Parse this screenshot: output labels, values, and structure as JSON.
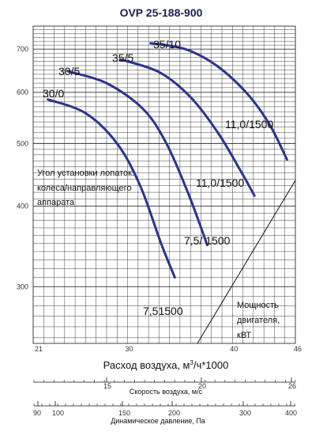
{
  "chart_data": {
    "type": "line",
    "title": "OVP 25-188-900",
    "xlabel_main": "Расход воздуха, м",
    "xlabel_sup": "3",
    "xlabel_rest": "/ч*1000",
    "xlim": [
      21,
      46
    ],
    "y_ticks": [
      300,
      400,
      500,
      600,
      700
    ],
    "x_ticks": [
      21,
      30,
      40,
      46
    ],
    "series": [
      {
        "name": "30/0",
        "points": [
          [
            22.4,
            585
          ],
          [
            26,
            557
          ],
          [
            29,
            500
          ],
          [
            31.2,
            430
          ],
          [
            33.2,
            350
          ],
          [
            34.5,
            310
          ]
        ]
      },
      {
        "name": "30/5",
        "points": [
          [
            24.3,
            647
          ],
          [
            28,
            620
          ],
          [
            31.5,
            565
          ],
          [
            33.7,
            500
          ],
          [
            35.8,
            418
          ],
          [
            37.6,
            348
          ]
        ]
      },
      {
        "name": "35/5",
        "points": [
          [
            29.3,
            675
          ],
          [
            33,
            645
          ],
          [
            36,
            590
          ],
          [
            38.6,
            520
          ],
          [
            40.8,
            453
          ],
          [
            42.1,
            415
          ]
        ]
      },
      {
        "name": "35/10",
        "points": [
          [
            32.2,
            715
          ],
          [
            35.5,
            700
          ],
          [
            38.5,
            660
          ],
          [
            41.5,
            595
          ],
          [
            43.6,
            533
          ],
          [
            45.2,
            472
          ]
        ]
      }
    ],
    "curve_labels": [
      "30/0",
      "30/5",
      "35/5",
      "35/10"
    ],
    "power_labels": [
      "11,0/1500",
      "11,0/1500",
      "7,5/ 1500",
      "7,51500"
    ],
    "power_note": [
      "Мощность",
      "двигателя,",
      "кВТ"
    ],
    "blade_note": [
      "Угол установки лопаток:",
      "колеса/направляющего",
      "аппарата"
    ],
    "velocity_axis": {
      "label": "Скорость воздуха, м/с",
      "ticks": [
        "15",
        "20",
        "26"
      ]
    },
    "pressure_axis": {
      "label": "Динамическое давление, Па",
      "ticks": [
        "90",
        "100",
        "150",
        "200",
        "300",
        "400"
      ]
    }
  },
  "colors": {
    "curve": "#2a3490",
    "title": "#1a2050",
    "grid": "#000000"
  }
}
